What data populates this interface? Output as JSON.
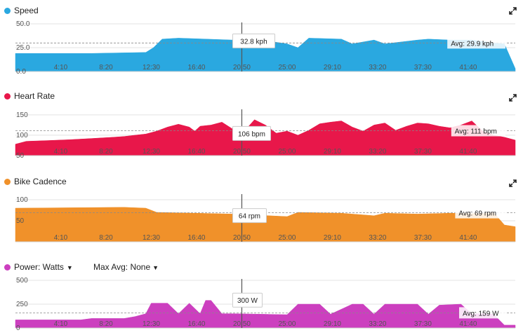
{
  "icons": {
    "expand": "expand-arrows-icon",
    "dropdown": "caret-down-icon"
  },
  "x_ticks": [
    "4:10",
    "8:20",
    "12:30",
    "16:40",
    "20:50",
    "25:00",
    "29:10",
    "33:20",
    "37:30",
    "41:40"
  ],
  "hover": {
    "x": "20:50"
  },
  "charts": {
    "speed": {
      "title": "Speed",
      "color": "#2aa8e0",
      "y_ticks": [
        "50.0",
        "25.0",
        "0.0"
      ],
      "avg_label": "Avg: 29.9 kph",
      "hover_label": "32.8 kph"
    },
    "hr": {
      "title": "Heart Rate",
      "color": "#e8174a",
      "y_ticks": [
        "150",
        "100",
        "50"
      ],
      "avg_label": "Avg: 111 bpm",
      "hover_label": "106 bpm"
    },
    "cadence": {
      "title": "Bike Cadence",
      "color": "#f0912a",
      "y_ticks": [
        "100",
        "50"
      ],
      "avg_label": "Avg: 69 rpm",
      "hover_label": "64 rpm"
    },
    "power": {
      "title": "Power: Watts",
      "color": "#cc3fbf",
      "max_avg_label": "Max Avg: None",
      "y_ticks": [
        "500",
        "250",
        "0"
      ],
      "avg_label": "Avg: 159 W",
      "hover_label": "300 W"
    }
  },
  "chart_data": [
    {
      "type": "area",
      "title": "Speed",
      "xlabel": "",
      "ylabel": "",
      "x_unit": "elapsed time (min:sec)",
      "x_range": [
        "0:00",
        "46:00"
      ],
      "ylim": [
        0,
        50
      ],
      "average": 29.9,
      "average_line": true,
      "hover": {
        "x": "20:50",
        "value": 32.8,
        "unit": "kph"
      },
      "series": [
        {
          "name": "Speed",
          "x_min": [
            0,
            7,
            12,
            12.7,
            13.5,
            15,
            20,
            22,
            25,
            26,
            27,
            30,
            31,
            33,
            34,
            37,
            38,
            40,
            42,
            44,
            45,
            46
          ],
          "y": [
            19,
            19,
            20,
            25,
            34,
            35,
            33,
            34,
            29,
            25,
            35,
            34,
            29,
            33,
            29,
            33,
            34,
            33,
            33,
            30,
            29,
            3
          ]
        }
      ]
    },
    {
      "type": "area",
      "title": "Heart Rate",
      "xlabel": "",
      "ylabel": "",
      "x_unit": "elapsed time (min:sec)",
      "x_range": [
        "0:00",
        "46:00"
      ],
      "ylim": [
        50,
        160
      ],
      "average": 111,
      "average_line": true,
      "hover": {
        "x": "20:50",
        "value": 106,
        "unit": "bpm"
      },
      "series": [
        {
          "name": "Heart Rate",
          "x_min": [
            0,
            1,
            3,
            5,
            7,
            9,
            10,
            11,
            12,
            13,
            14,
            15,
            16,
            16.5,
            17,
            18,
            19,
            20,
            21,
            22,
            23,
            24,
            25,
            26,
            27,
            28,
            29,
            30,
            31,
            32,
            33,
            34,
            35,
            36,
            37,
            38,
            39,
            40,
            41,
            42,
            43,
            44,
            45,
            46
          ],
          "y": [
            78,
            85,
            87,
            89,
            92,
            95,
            97,
            100,
            103,
            110,
            120,
            127,
            120,
            110,
            122,
            125,
            132,
            115,
            108,
            138,
            125,
            105,
            110,
            100,
            112,
            128,
            132,
            135,
            120,
            110,
            125,
            130,
            112,
            122,
            130,
            128,
            122,
            118,
            125,
            135,
            110,
            100,
            95,
            88
          ]
        }
      ]
    },
    {
      "type": "area",
      "title": "Bike Cadence",
      "xlabel": "",
      "ylabel": "",
      "x_unit": "elapsed time (min:sec)",
      "x_range": [
        "0:00",
        "46:00"
      ],
      "ylim": [
        0,
        110
      ],
      "average": 69,
      "average_line": true,
      "hover": {
        "x": "20:50",
        "value": 64,
        "unit": "rpm"
      },
      "series": [
        {
          "name": "Bike Cadence",
          "x_min": [
            0,
            10,
            12,
            13,
            20,
            25,
            26,
            30,
            33,
            34,
            37,
            40,
            43,
            44,
            45,
            46
          ],
          "y": [
            80,
            82,
            80,
            70,
            66,
            60,
            70,
            68,
            62,
            68,
            66,
            68,
            67,
            70,
            40,
            36
          ]
        }
      ]
    },
    {
      "type": "area",
      "title": "Power: Watts",
      "xlabel": "",
      "ylabel": "",
      "x_unit": "elapsed time (min:sec)",
      "x_range": [
        "0:00",
        "46:00"
      ],
      "ylim": [
        0,
        500
      ],
      "average": 159,
      "average_line": true,
      "hover": {
        "x": "20:50",
        "value": 300,
        "unit": "W"
      },
      "series": [
        {
          "name": "Power",
          "x_min": [
            0,
            6,
            7,
            10,
            11,
            12,
            12.5,
            14,
            15,
            16,
            17,
            17.5,
            18,
            19,
            20,
            25,
            26,
            28,
            29,
            31,
            32,
            33,
            34,
            37,
            38,
            39,
            41,
            42,
            43,
            44,
            45,
            46
          ],
          "y": [
            85,
            85,
            100,
            100,
            120,
            150,
            260,
            260,
            150,
            260,
            150,
            290,
            290,
            150,
            150,
            140,
            250,
            250,
            145,
            250,
            250,
            145,
            250,
            250,
            145,
            240,
            250,
            150,
            150,
            145,
            30,
            30
          ]
        }
      ]
    }
  ]
}
